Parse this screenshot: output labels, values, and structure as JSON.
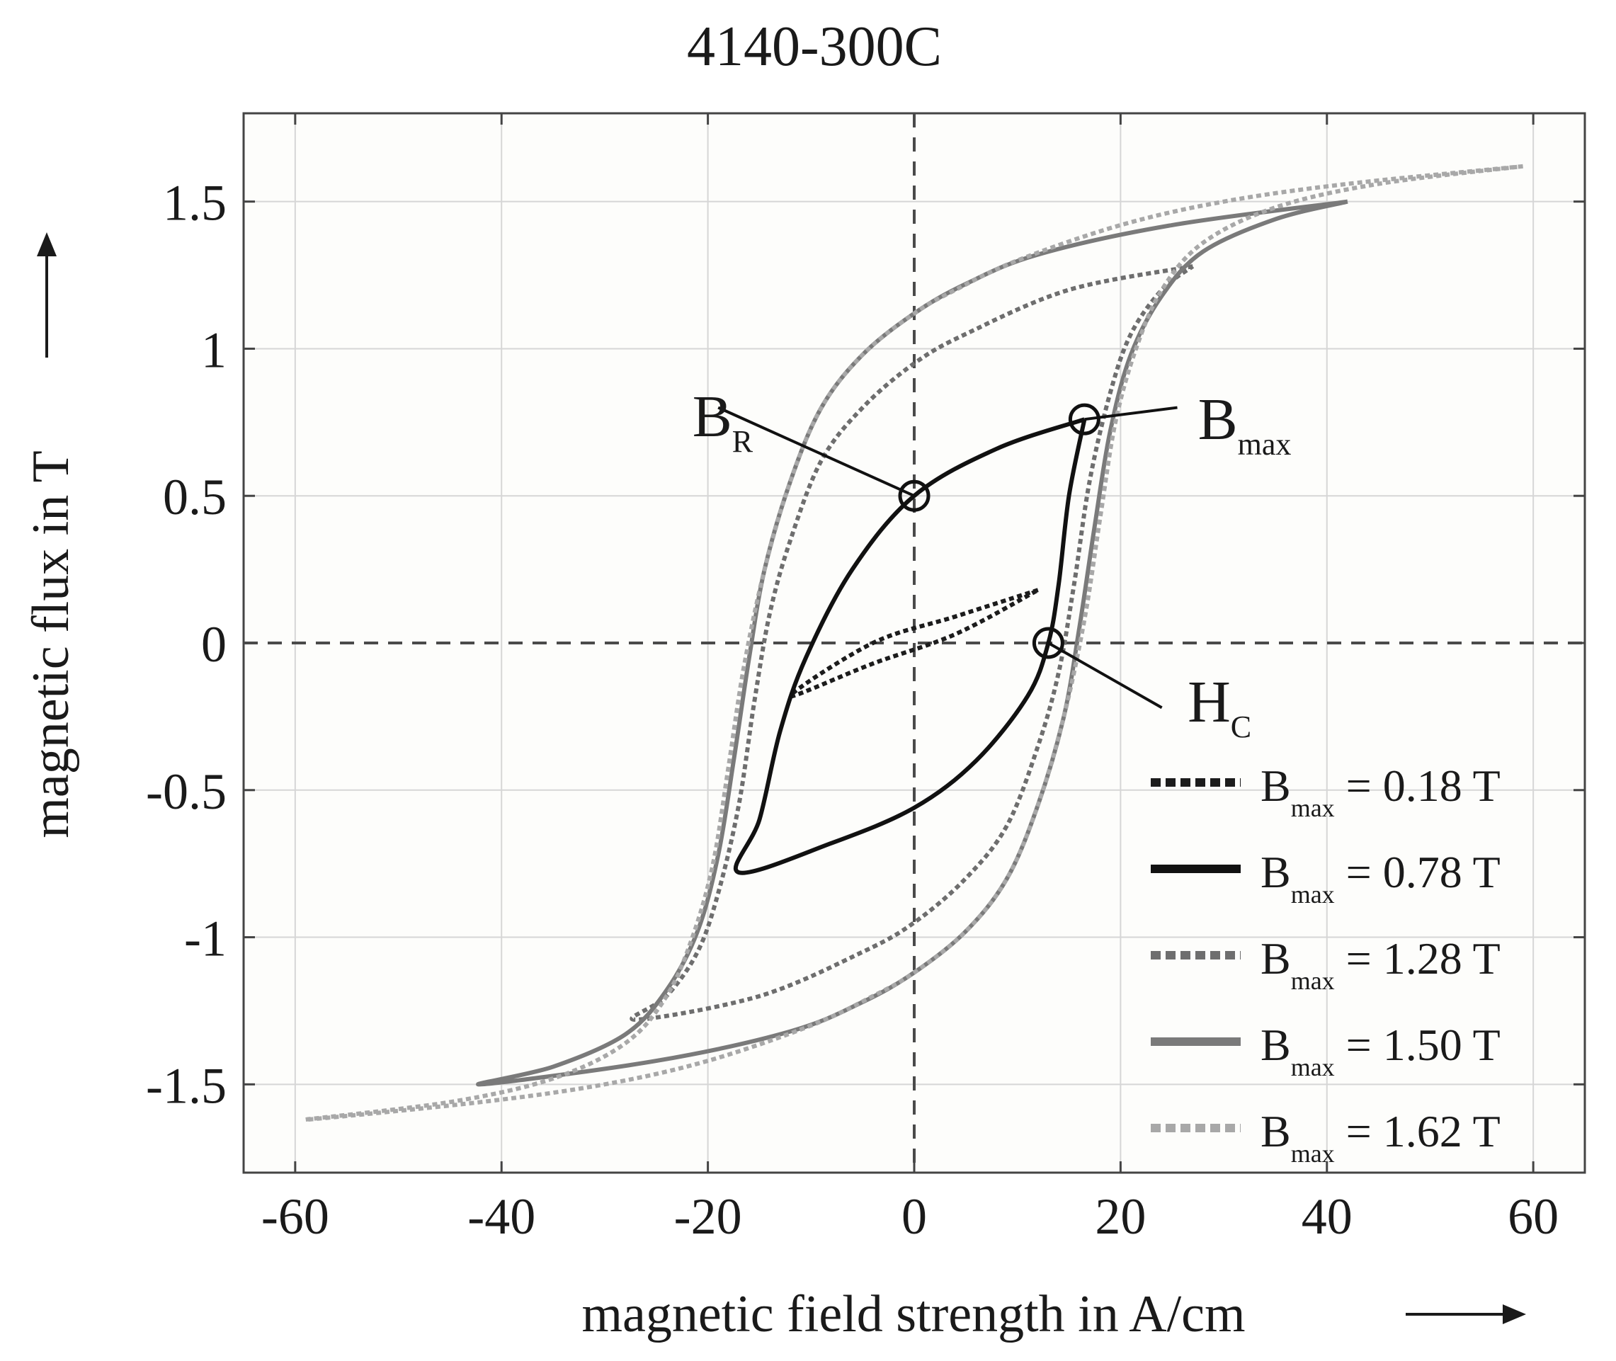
{
  "chart_data": {
    "type": "line",
    "title": "4140-300C",
    "xlabel": "magnetic field strength in A/cm",
    "ylabel": "magnetic flux in T",
    "xlim": [
      -65,
      65
    ],
    "ylim": [
      -1.8,
      1.8
    ],
    "x_ticks": [
      "-60",
      "-40",
      "-20",
      "0",
      "20",
      "40",
      "60"
    ],
    "y_ticks": [
      "1.5",
      "1",
      "0.5",
      "0",
      "-0.5",
      "-1",
      "-1.5"
    ],
    "x_tick_values": [
      -60,
      -40,
      -20,
      0,
      20,
      40,
      60
    ],
    "y_tick_values": [
      1.5,
      1,
      0.5,
      0,
      -0.5,
      -1,
      -1.5
    ],
    "grid": true,
    "legend_position": "bottom-right",
    "series": [
      {
        "name": "B_max = 0.18 T",
        "legend_main": "B",
        "legend_sub": "max",
        "legend_rest": " = 0.18 T",
        "color": "#1c1c1c",
        "style": "dotted",
        "x": [
          12.0,
          4.0,
          -4.0,
          -12.0,
          -4.0,
          4.0,
          12.0
        ],
        "y": [
          0.18,
          0.09,
          0.0,
          -0.18,
          -0.07,
          0.03,
          0.18
        ]
      },
      {
        "name": "B_max = 0.78 T",
        "legend_main": "B",
        "legend_sub": "max",
        "legend_rest": " = 0.78 T",
        "color": "#111111",
        "style": "solid",
        "x": [
          16.5,
          8.0,
          0.0,
          -6.0,
          -10.5,
          -13.0,
          -15.0,
          -17.0,
          -8.0,
          0.0,
          6.0,
          11.0,
          13.0,
          14.0,
          15.0,
          16.5
        ],
        "y": [
          0.76,
          0.66,
          0.5,
          0.25,
          -0.05,
          -0.3,
          -0.6,
          -0.78,
          -0.68,
          -0.56,
          -0.4,
          -0.18,
          0.0,
          0.2,
          0.5,
          0.76
        ]
      },
      {
        "name": "B_max = 1.28 T",
        "legend_main": "B",
        "legend_sub": "max",
        "legend_rest": " = 1.28 T",
        "color": "#6e6e6e",
        "style": "dotted",
        "x": [
          27.0,
          15.0,
          5.0,
          0.0,
          -5.0,
          -9.0,
          -12.0,
          -14.0,
          -15.5,
          -17.0,
          -19.0,
          -21.0,
          -24.0,
          -27.0,
          -15.0,
          -5.0,
          0.0,
          5.0,
          9.0,
          12.0,
          14.0,
          15.5,
          17.0,
          19.0,
          21.0,
          24.0,
          27.0
        ],
        "y": [
          1.28,
          1.2,
          1.05,
          0.95,
          0.8,
          0.62,
          0.35,
          0.1,
          -0.2,
          -0.55,
          -0.85,
          -1.05,
          -1.2,
          -1.28,
          -1.2,
          -1.05,
          -0.95,
          -0.8,
          -0.62,
          -0.35,
          -0.1,
          0.2,
          0.55,
          0.85,
          1.05,
          1.2,
          1.28
        ]
      },
      {
        "name": "B_max = 1.50 T",
        "legend_main": "B",
        "legend_sub": "max",
        "legend_rest": " = 1.50 T",
        "color": "#7a7a7a",
        "style": "solid",
        "x": [
          42.0,
          25.0,
          12.0,
          5.0,
          0.0,
          -5.0,
          -9.0,
          -12.0,
          -14.5,
          -16.0,
          -17.5,
          -19.0,
          -21.0,
          -24.0,
          -28.0,
          -35.0,
          -42.0,
          -25.0,
          -12.0,
          -5.0,
          0.0,
          5.0,
          9.0,
          12.0,
          14.5,
          16.0,
          17.5,
          19.0,
          21.0,
          24.0,
          28.0,
          35.0,
          42.0
        ],
        "y": [
          1.5,
          1.42,
          1.32,
          1.22,
          1.12,
          0.98,
          0.8,
          0.55,
          0.25,
          -0.05,
          -0.4,
          -0.72,
          -0.98,
          -1.18,
          -1.33,
          -1.44,
          -1.5,
          -1.42,
          -1.32,
          -1.22,
          -1.12,
          -0.98,
          -0.8,
          -0.55,
          -0.25,
          0.05,
          0.4,
          0.72,
          0.98,
          1.18,
          1.33,
          1.44,
          1.5
        ]
      },
      {
        "name": "B_max = 1.62 T",
        "legend_main": "B",
        "legend_sub": "max",
        "legend_rest": " = 1.62 T",
        "color": "#a8a8a8",
        "style": "dotted",
        "x": [
          59.0,
          42.0,
          30.0,
          20.0,
          10.0,
          4.0,
          0.0,
          -5.0,
          -9.0,
          -12.0,
          -14.5,
          -16.5,
          -18.0,
          -19.5,
          -21.5,
          -24.0,
          -28.0,
          -35.0,
          -45.0,
          -59.0,
          -42.0,
          -30.0,
          -20.0,
          -10.0,
          -4.0,
          0.0,
          5.0,
          9.0,
          12.0,
          14.5,
          16.5,
          18.0,
          19.5,
          21.5,
          24.0,
          28.0,
          35.0,
          45.0,
          59.0
        ],
        "y": [
          1.62,
          1.56,
          1.5,
          1.42,
          1.3,
          1.2,
          1.12,
          0.98,
          0.8,
          0.55,
          0.25,
          -0.08,
          -0.42,
          -0.75,
          -1.0,
          -1.2,
          -1.36,
          -1.48,
          -1.56,
          -1.62,
          -1.56,
          -1.5,
          -1.42,
          -1.3,
          -1.2,
          -1.12,
          -0.98,
          -0.8,
          -0.55,
          -0.25,
          0.08,
          0.42,
          0.75,
          1.0,
          1.2,
          1.36,
          1.48,
          1.56,
          1.62
        ]
      }
    ],
    "markers": [
      {
        "name": "B_R",
        "x": 0.0,
        "y": 0.5,
        "label_main": "B",
        "label_sub": "R",
        "label_x": -21.5,
        "label_y": 0.77,
        "leader_x": -19.0,
        "leader_y": 0.8
      },
      {
        "name": "B_max",
        "x": 16.5,
        "y": 0.76,
        "label_main": "B",
        "label_sub": "max",
        "label_x": 27.5,
        "label_y": 0.76,
        "leader_x": 25.5,
        "leader_y": 0.8
      },
      {
        "name": "H_C",
        "x": 13.0,
        "y": 0.0,
        "label_main": "H",
        "label_sub": "C",
        "label_x": 26.5,
        "label_y": -0.2,
        "leader_x": 24.0,
        "leader_y": -0.22
      }
    ]
  }
}
